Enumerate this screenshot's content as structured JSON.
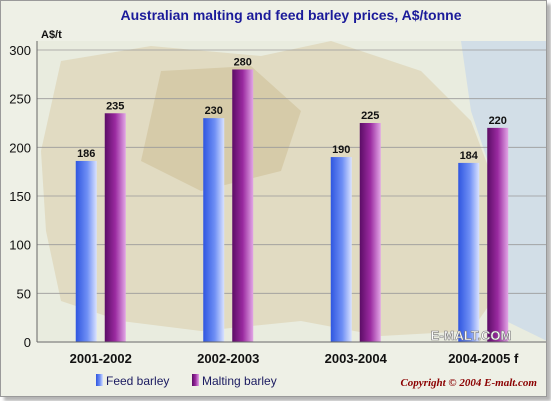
{
  "chart_data": {
    "type": "bar",
    "title": "Australian malting and feed barley prices, A$/tonne",
    "ylabel": "A$/t",
    "ylim": [
      0,
      300
    ],
    "yticks": [
      0,
      50,
      100,
      150,
      200,
      250,
      300
    ],
    "grid": true,
    "categories": [
      "2001-2002",
      "2002-2003",
      "2003-2004",
      "2004-2005 f"
    ],
    "series": [
      {
        "name": "Feed barley",
        "values": [
          186,
          230,
          190,
          184
        ],
        "color": "#4a6ef0"
      },
      {
        "name": "Malting barley",
        "values": [
          235,
          280,
          225,
          220
        ],
        "color": "#8a1f8e"
      }
    ],
    "legend_position": "bottom-left",
    "watermark": "E-MALT.COM",
    "copyright": "Copyright © 2004 E-malt.com"
  }
}
